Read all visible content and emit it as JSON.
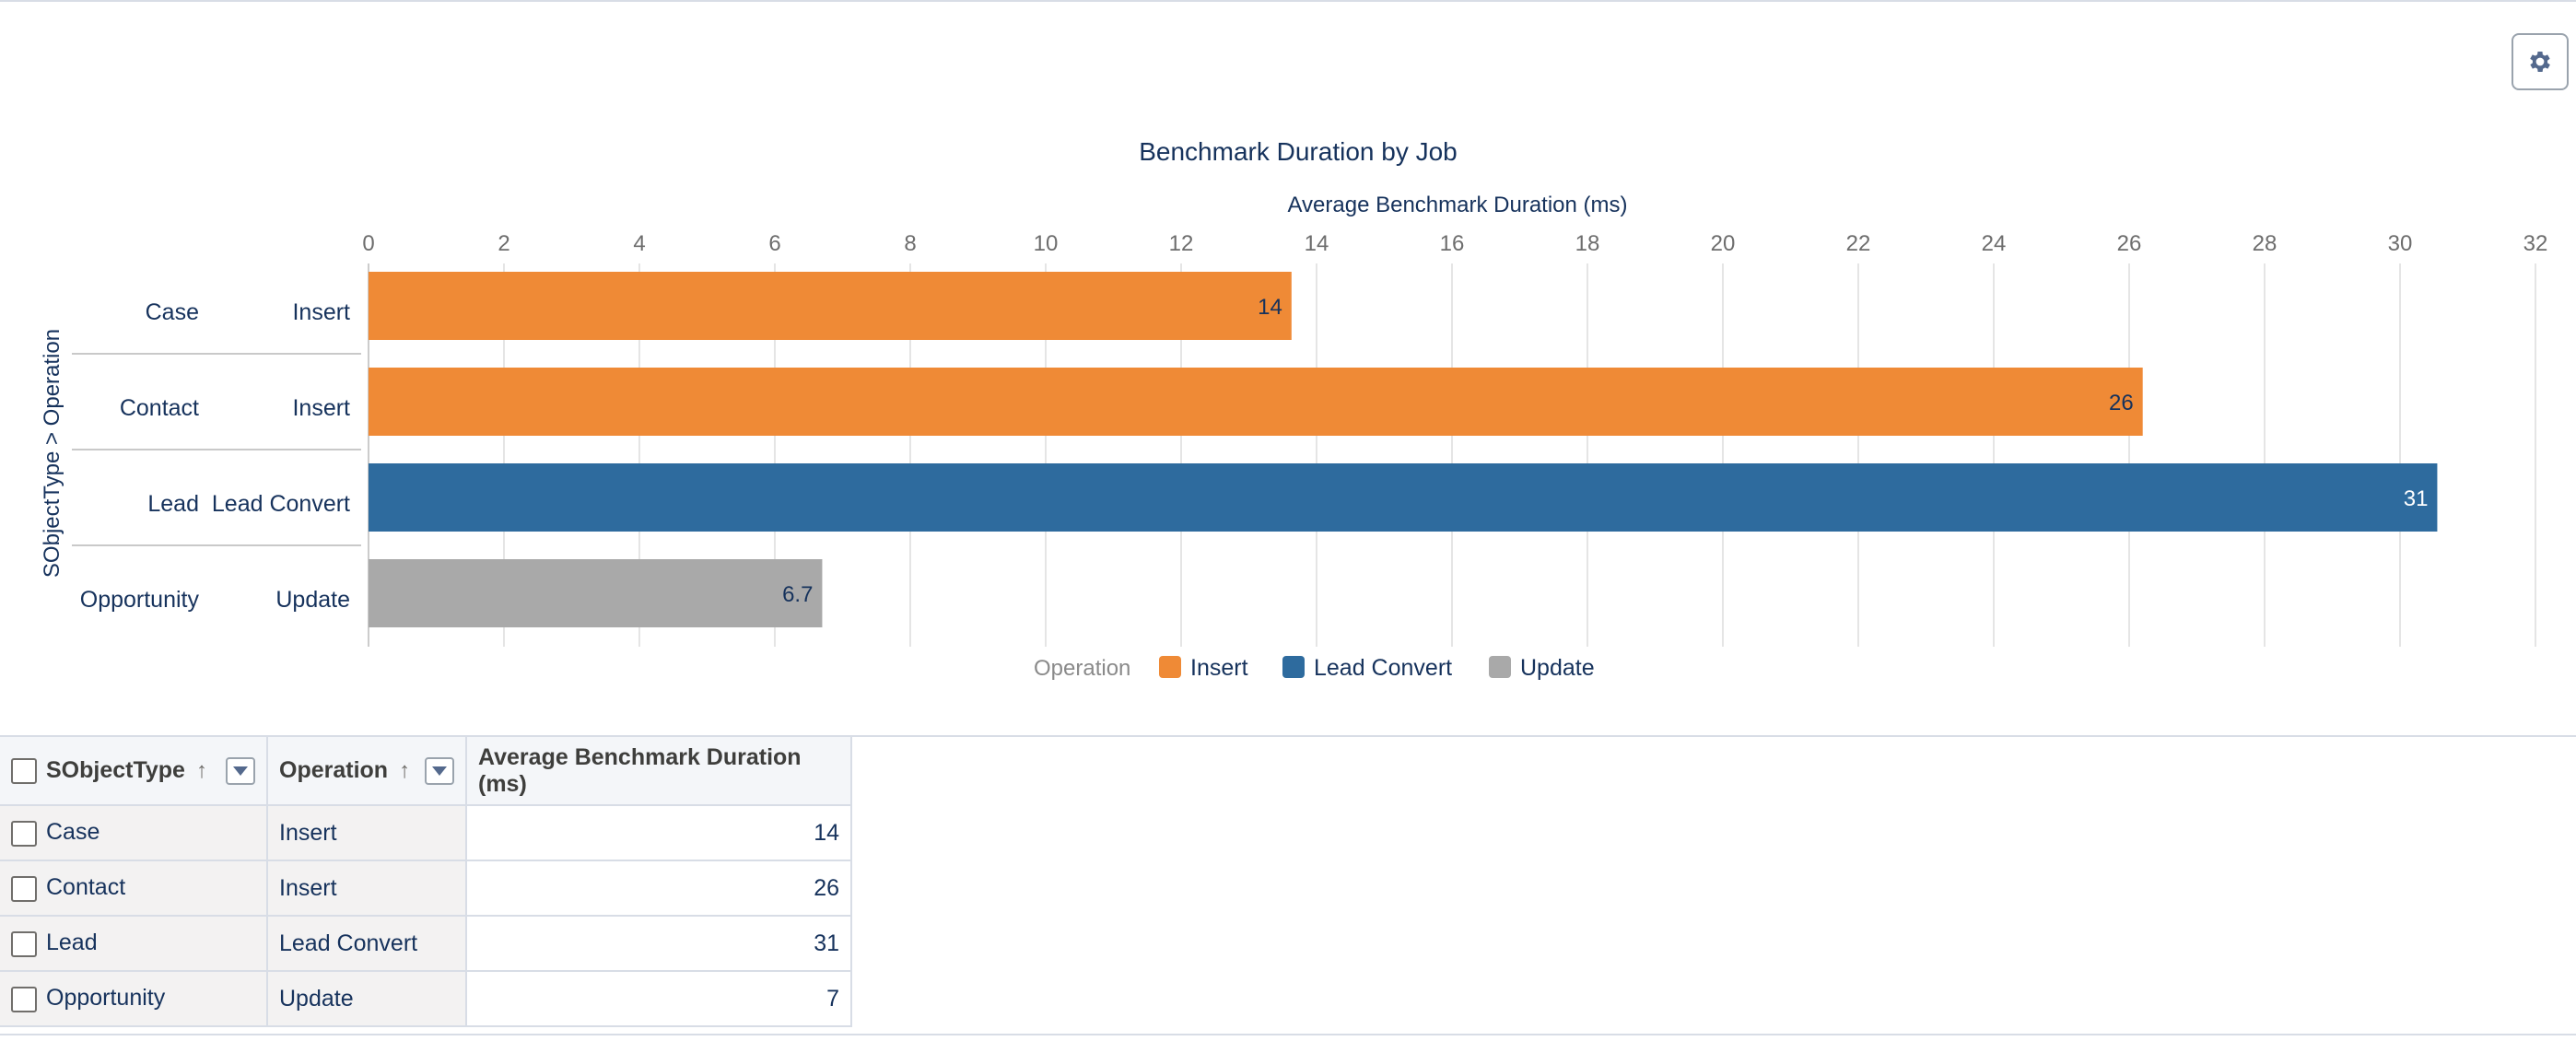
{
  "chart_data": {
    "type": "bar",
    "orientation": "horizontal",
    "title": "Benchmark Duration by Job",
    "xlabel": "Average Benchmark Duration (ms)",
    "ylabel": "SObjectType > Operation",
    "xlim": [
      0,
      32
    ],
    "xticks": [
      "0",
      "2",
      "4",
      "6",
      "8",
      "10",
      "12",
      "14",
      "16",
      "18",
      "20",
      "22",
      "24",
      "26",
      "28",
      "30",
      "32"
    ],
    "grid": true,
    "legend_position": "bottom",
    "legend_title": "Operation",
    "legend": [
      {
        "label": "Insert",
        "color": "#ef8a36"
      },
      {
        "label": "Lead Convert",
        "color": "#2e6b9e"
      },
      {
        "label": "Update",
        "color": "#a9a9a9"
      }
    ],
    "bars": [
      {
        "sobject": "Case",
        "operation": "Insert",
        "value": 13.63,
        "label": "14",
        "color": "#ef8a36"
      },
      {
        "sobject": "Contact",
        "operation": "Insert",
        "value": 26.2,
        "label": "26",
        "color": "#ef8a36"
      },
      {
        "sobject": "Lead",
        "operation": "Lead Convert",
        "value": 30.55,
        "label": "31",
        "color": "#2e6b9e"
      },
      {
        "sobject": "Opportunity",
        "operation": "Update",
        "value": 6.7,
        "label": "6.7",
        "color": "#a9a9a9"
      }
    ]
  },
  "settings": {
    "icon": "gear-icon"
  },
  "table": {
    "headers": {
      "sobject": "SObjectType",
      "operation": "Operation",
      "duration": "Average Benchmark Duration (ms)",
      "sort_glyph": "↑"
    },
    "rows": [
      {
        "sobject": "Case",
        "operation": "Insert",
        "duration": "14"
      },
      {
        "sobject": "Contact",
        "operation": "Insert",
        "duration": "26"
      },
      {
        "sobject": "Lead",
        "operation": "Lead Convert",
        "duration": "31"
      },
      {
        "sobject": "Opportunity",
        "operation": "Update",
        "duration": "7"
      }
    ]
  }
}
